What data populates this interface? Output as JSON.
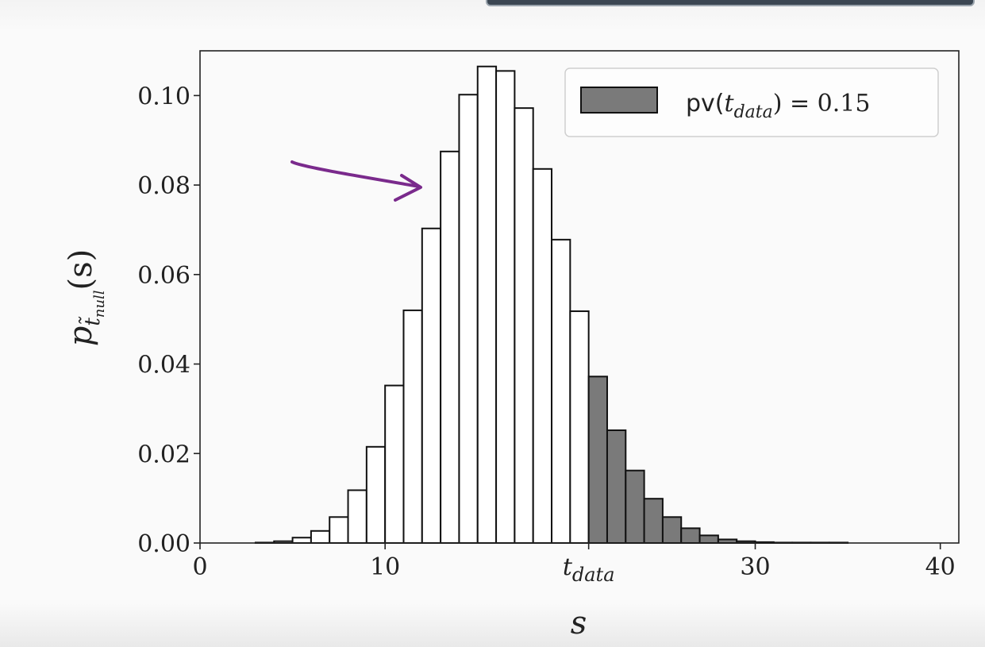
{
  "overlay": {
    "color": "#3b4652"
  },
  "colors": {
    "bar_fill": "#ffffff",
    "tail_fill": "#7a7a7a",
    "edge": "#111111",
    "arrow": "#7a2a8c"
  },
  "chart_data": {
    "type": "bar",
    "title": "",
    "xlabel": "s",
    "ylabel_main": "p",
    "ylabel_sub": "t̃",
    "ylabel_subsub": "null",
    "ylabel_arg": "(s)",
    "xlim": [
      0,
      41
    ],
    "ylim": [
      0,
      0.11
    ],
    "grid": false,
    "xticks": [
      {
        "value": 0,
        "label": "0"
      },
      {
        "value": 10,
        "label": "10"
      },
      {
        "value": 21,
        "label": "t",
        "sub": "data"
      },
      {
        "value": 30,
        "label": "30"
      },
      {
        "value": 40,
        "label": "40"
      }
    ],
    "yticks": [
      {
        "value": 0.0,
        "label": "0.00"
      },
      {
        "value": 0.02,
        "label": "0.02"
      },
      {
        "value": 0.04,
        "label": "0.04"
      },
      {
        "value": 0.06,
        "label": "0.06"
      },
      {
        "value": 0.08,
        "label": "0.08"
      },
      {
        "value": 0.1,
        "label": "0.10"
      }
    ],
    "bin_width": 1,
    "bin_edges_start": 3,
    "values": [
      0.0001,
      0.0004,
      0.0012,
      0.0027,
      0.0058,
      0.0118,
      0.0215,
      0.0352,
      0.052,
      0.0703,
      0.0875,
      0.1002,
      0.1065,
      0.1055,
      0.0972,
      0.0836,
      0.0678,
      0.0518,
      0.0372,
      0.0252,
      0.0162,
      0.0099,
      0.0058,
      0.0033,
      0.0017,
      0.0008,
      0.0004,
      0.0002,
      0.0001,
      0.0001,
      0.0001,
      0.0001
    ],
    "t_data": 21,
    "legend": {
      "position": "top-right",
      "label_prefix": "pv(",
      "label_var": "t",
      "label_sub": "data",
      "label_suffix": ") = 0.15"
    }
  }
}
